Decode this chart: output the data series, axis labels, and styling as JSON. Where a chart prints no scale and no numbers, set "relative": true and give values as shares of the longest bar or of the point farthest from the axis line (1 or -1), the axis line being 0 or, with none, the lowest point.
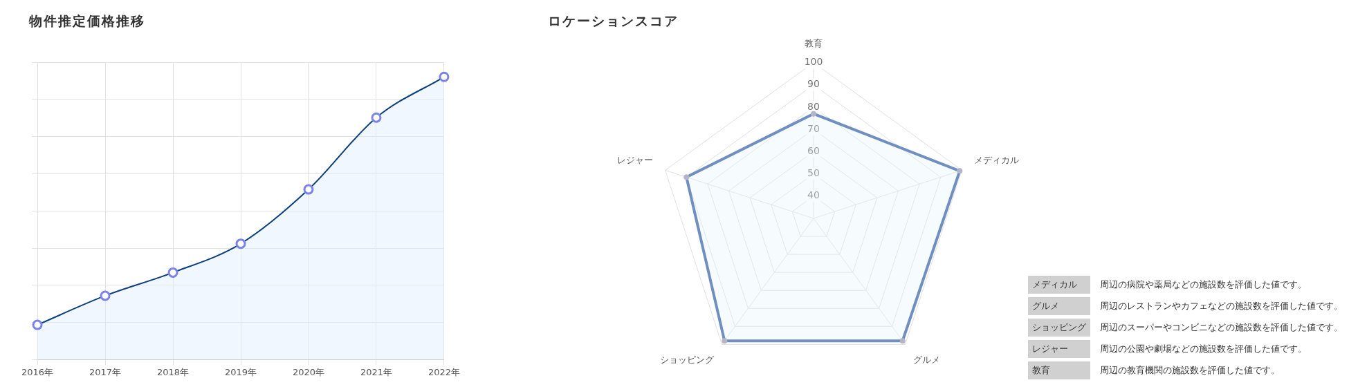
{
  "chart_data": [
    {
      "type": "area",
      "title": "物件推定価格推移",
      "categories": [
        "2016年",
        "2017年",
        "2018年",
        "2019年",
        "2020年",
        "2021年",
        "2022年"
      ],
      "values": [
        0.123,
        0.226,
        0.308,
        0.41,
        0.602,
        0.856,
        1
      ],
      "color": "#0d3f7f",
      "relative": true,
      "grid": true,
      "marker": "circle",
      "legend": false
    },
    {
      "type": "radar",
      "title": "ロケーションスコア",
      "categories": [
        "教育",
        "メディカル",
        "グルメ",
        "ショッピング",
        "レジャー"
      ],
      "series": [
        {
          "color": "#6f8fc0",
          "values": [
            77,
            99,
            98,
            98,
            90
          ]
        }
      ],
      "ylim": [
        30,
        100
      ],
      "yticks": [
        40,
        50,
        60,
        70,
        80,
        90,
        100
      ],
      "grid": true,
      "marker": "circle",
      "legend": false
    },
    {
      "type": "other",
      "categories": [
        "メディカル",
        "グルメ",
        "ショッピング",
        "レジャー",
        "教育"
      ],
      "annotations": [
        "周辺の病院や薬局などの施設数を評価した値です。",
        "周辺のレストランやカフェなどの施設数を評価した値です。",
        "周辺のスーパーやコンビニなどの施設数を評価した値です。",
        "周辺の公園や劇場などの施設数を評価した値です。",
        "周辺の教育機関の施設数を評価した値です。"
      ]
    }
  ]
}
